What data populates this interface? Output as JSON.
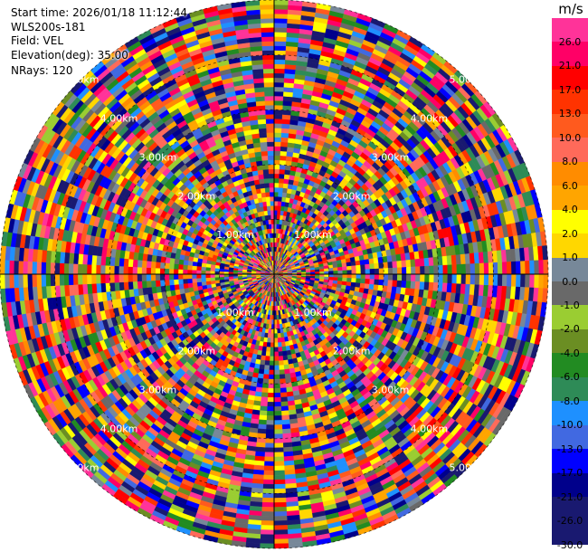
{
  "info": {
    "start_time": "Start time: 2026/01/18 11:12:44",
    "instrument": "WLS200s-181",
    "field": "Field: VEL",
    "elevation": "Elevation(deg): 35.00",
    "nrays": "NRays: 120"
  },
  "chart_data": {
    "type": "polar-heatmap",
    "field": "VEL",
    "unit": "m/s",
    "n_rays": 120,
    "range_rings_km": [
      1.0,
      2.0,
      3.0,
      4.0,
      5.0
    ],
    "range_ring_labels": [
      "1.00km",
      "2.00km",
      "3.00km",
      "4.00km",
      "5.00km"
    ],
    "colorbar": {
      "label": "m/s",
      "bins": [
        {
          "value": "26.0",
          "color": "#ff3399"
        },
        {
          "value": "21.0",
          "color": "#ff0066"
        },
        {
          "value": "17.0",
          "color": "#ff0000"
        },
        {
          "value": "13.0",
          "color": "#ff3300"
        },
        {
          "value": "10.0",
          "color": "#ff5a1e"
        },
        {
          "value": "8.0",
          "color": "#ff6a5a"
        },
        {
          "value": "6.0",
          "color": "#ff8c00"
        },
        {
          "value": "4.0",
          "color": "#ffa500"
        },
        {
          "value": "2.0",
          "color": "#ffff00"
        },
        {
          "value": "1.0",
          "color": "#ffd700"
        },
        {
          "value": "0.0",
          "color": "#778899"
        },
        {
          "value": "-1.0",
          "color": "#696969"
        },
        {
          "value": "-2.0",
          "color": "#9acd32"
        },
        {
          "value": "-4.0",
          "color": "#6b8e23"
        },
        {
          "value": "-6.0",
          "color": "#228b22"
        },
        {
          "value": "-8.0",
          "color": "#2e8b57"
        },
        {
          "value": "-10.0",
          "color": "#1e90ff"
        },
        {
          "value": "-13.0",
          "color": "#4169e1"
        },
        {
          "value": "-17.0",
          "color": "#0000ff"
        },
        {
          "value": "-21.0",
          "color": "#00008b"
        },
        {
          "value": "-26.0",
          "color": "#191970"
        },
        {
          "value": "-30.0",
          "color": "#191970"
        }
      ]
    },
    "grid": true
  }
}
